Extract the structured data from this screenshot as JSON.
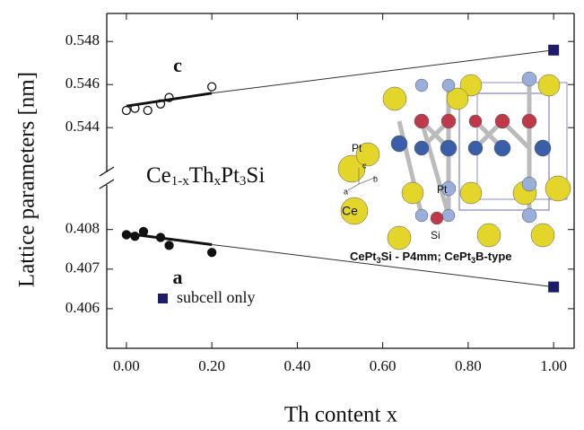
{
  "chart_data": [
    {
      "type": "scatter",
      "ylabel": "Lattice parameters [nm]",
      "ylim": [
        0.5418,
        0.5493
      ],
      "yticks": [
        0.544,
        0.546,
        0.548
      ],
      "series": [
        {
          "mode": "markers",
          "marker": "open-circle",
          "color": "#111111",
          "x": [
            0,
            0.02,
            0.05,
            0.08,
            0.1,
            0.2
          ],
          "values": [
            0.5448,
            0.5449,
            0.5448,
            0.5451,
            0.5454,
            0.5459
          ]
        },
        {
          "mode": "line",
          "color": "#111111",
          "width": 3,
          "x": [
            0,
            0.2
          ],
          "values": [
            0.545,
            0.5456
          ]
        },
        {
          "mode": "line",
          "color": "#333333",
          "width": 1,
          "x": [
            0.2,
            1
          ],
          "values": [
            0.5456,
            0.5476
          ]
        },
        {
          "mode": "markers",
          "marker": "square",
          "color": "#1c1c6b",
          "x": [
            1
          ],
          "values": [
            0.5476
          ]
        }
      ],
      "annotations": [
        {
          "text": "c",
          "x": 0.12,
          "y": 0.5468
        }
      ],
      "formula": [
        "Ce",
        "1-x",
        "Th",
        "x",
        "Pt",
        "3",
        "Si"
      ]
    },
    {
      "type": "scatter",
      "xlabel": "Th content x",
      "xlim": [
        -0.046,
        1.048
      ],
      "xticks": [
        {
          "value": 0,
          "label": "0.00"
        },
        {
          "value": 0.2,
          "label": "0.20"
        },
        {
          "value": 0.4,
          "label": "0.40"
        },
        {
          "value": 0.6,
          "label": "0.60"
        },
        {
          "value": 0.8,
          "label": "0.80"
        },
        {
          "value": 1,
          "label": "1.00"
        }
      ],
      "ylim": [
        0.405,
        0.40915
      ],
      "yticks": [
        0.406,
        0.407,
        0.408
      ],
      "series": [
        {
          "mode": "markers",
          "marker": "filled-circle",
          "color": "#111111",
          "x": [
            0,
            0.02,
            0.04,
            0.08,
            0.1,
            0.2
          ],
          "values": [
            0.40787,
            0.40783,
            0.40795,
            0.4078,
            0.4076,
            0.40742
          ]
        },
        {
          "mode": "line",
          "color": "#111111",
          "width": 3,
          "x": [
            0,
            0.2
          ],
          "values": [
            0.4079,
            0.40762
          ]
        },
        {
          "mode": "line",
          "color": "#333333",
          "width": 1,
          "x": [
            0.2,
            1
          ],
          "values": [
            0.40762,
            0.40655
          ]
        },
        {
          "name": "subcell only",
          "mode": "markers",
          "marker": "square",
          "color": "#1c1c6b",
          "x": [
            1
          ],
          "values": [
            0.40655
          ]
        }
      ],
      "annotations": [
        {
          "text": "a",
          "x": 0.12,
          "y": 0.40675
        }
      ],
      "inset": {
        "labels": [
          "Pt",
          "Pt",
          "Ce",
          "Si",
          "a",
          "b",
          "c"
        ],
        "caption": [
          "CePt",
          "3",
          "Si  -  P4mm; CePt",
          "3",
          "B-type"
        ]
      }
    }
  ]
}
